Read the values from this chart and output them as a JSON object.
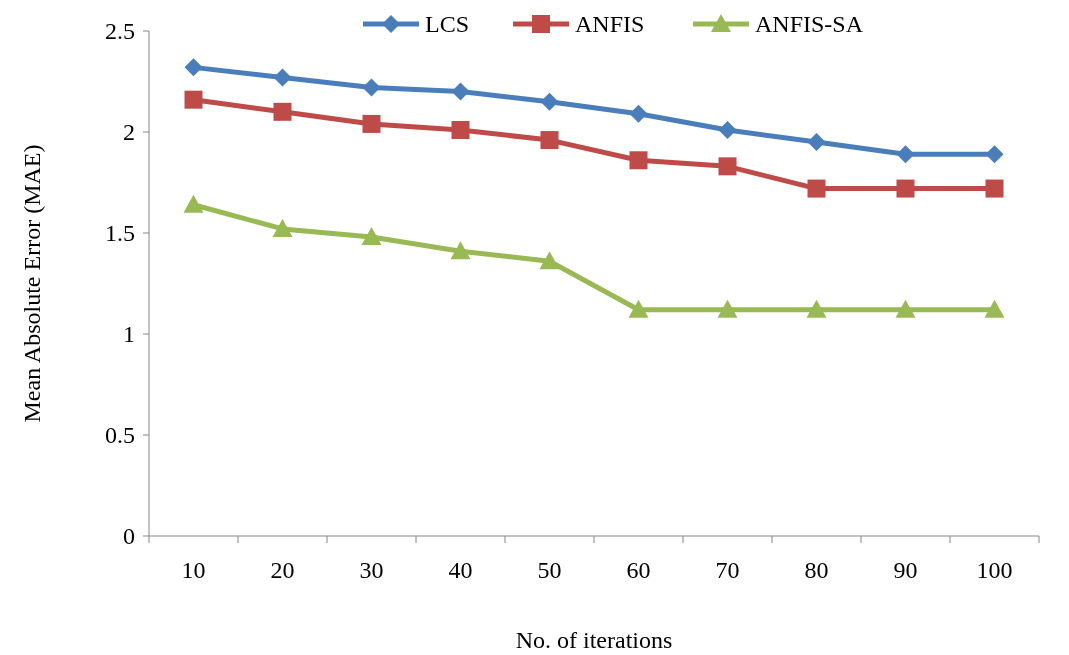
{
  "chart_data": {
    "type": "line",
    "xlabel": "No. of iterations",
    "ylabel": "Mean Absolute Error (MAE)",
    "categories": [
      "10",
      "20",
      "30",
      "40",
      "50",
      "60",
      "70",
      "80",
      "90",
      "100"
    ],
    "ylim": [
      0,
      2.5
    ],
    "yticks": [
      0,
      0.5,
      1,
      1.5,
      2,
      2.5
    ],
    "grid": false,
    "legend": "top",
    "line_style": "solid",
    "series": [
      {
        "name": "LCS",
        "color": "#4a7ebb",
        "marker": "diamond",
        "values": [
          2.32,
          2.27,
          2.22,
          2.2,
          2.15,
          2.09,
          2.01,
          1.95,
          1.89,
          1.89
        ]
      },
      {
        "name": "ANFIS",
        "color": "#be4b48",
        "marker": "square",
        "values": [
          2.16,
          2.1,
          2.04,
          2.01,
          1.96,
          1.86,
          1.83,
          1.72,
          1.72,
          1.72
        ]
      },
      {
        "name": "ANFIS-SA",
        "color": "#98b954",
        "marker": "triangle",
        "values": [
          1.64,
          1.52,
          1.48,
          1.41,
          1.36,
          1.12,
          1.12,
          1.12,
          1.12,
          1.12
        ]
      }
    ]
  }
}
